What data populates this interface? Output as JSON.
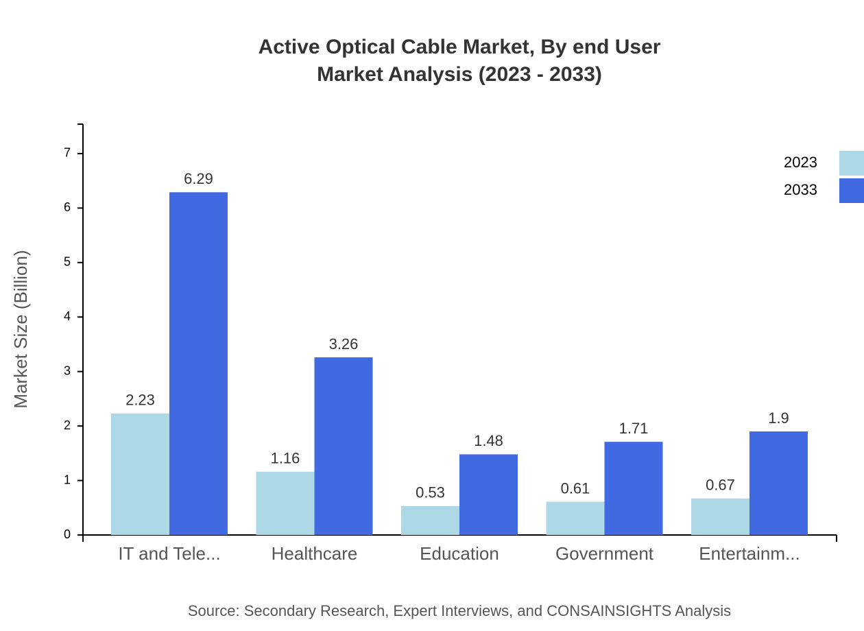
{
  "chart_data": {
    "type": "bar",
    "title": "Active Optical Cable Market, By end User",
    "subtitle": "Market Analysis (2023 - 2033)",
    "y_label": "Market Size (Billion)",
    "source": "Source: Secondary Research, Expert Interviews, and CONSAINSIGHTS Analysis",
    "categories": [
      "IT and Tele...",
      "Healthcare",
      "Education",
      "Government",
      "Entertainm..."
    ],
    "series": [
      {
        "name": "2023",
        "color": "#add8e6",
        "values": [
          2.23,
          1.16,
          0.53,
          0.61,
          0.67
        ]
      },
      {
        "name": "2033",
        "color": "#4169e1",
        "values": [
          6.29,
          3.26,
          1.48,
          1.71,
          1.9
        ]
      }
    ],
    "ylim": [
      0,
      7.54
    ],
    "yticks": [
      0,
      1,
      2,
      3,
      4,
      5,
      6,
      7
    ],
    "legend": "top-right"
  }
}
